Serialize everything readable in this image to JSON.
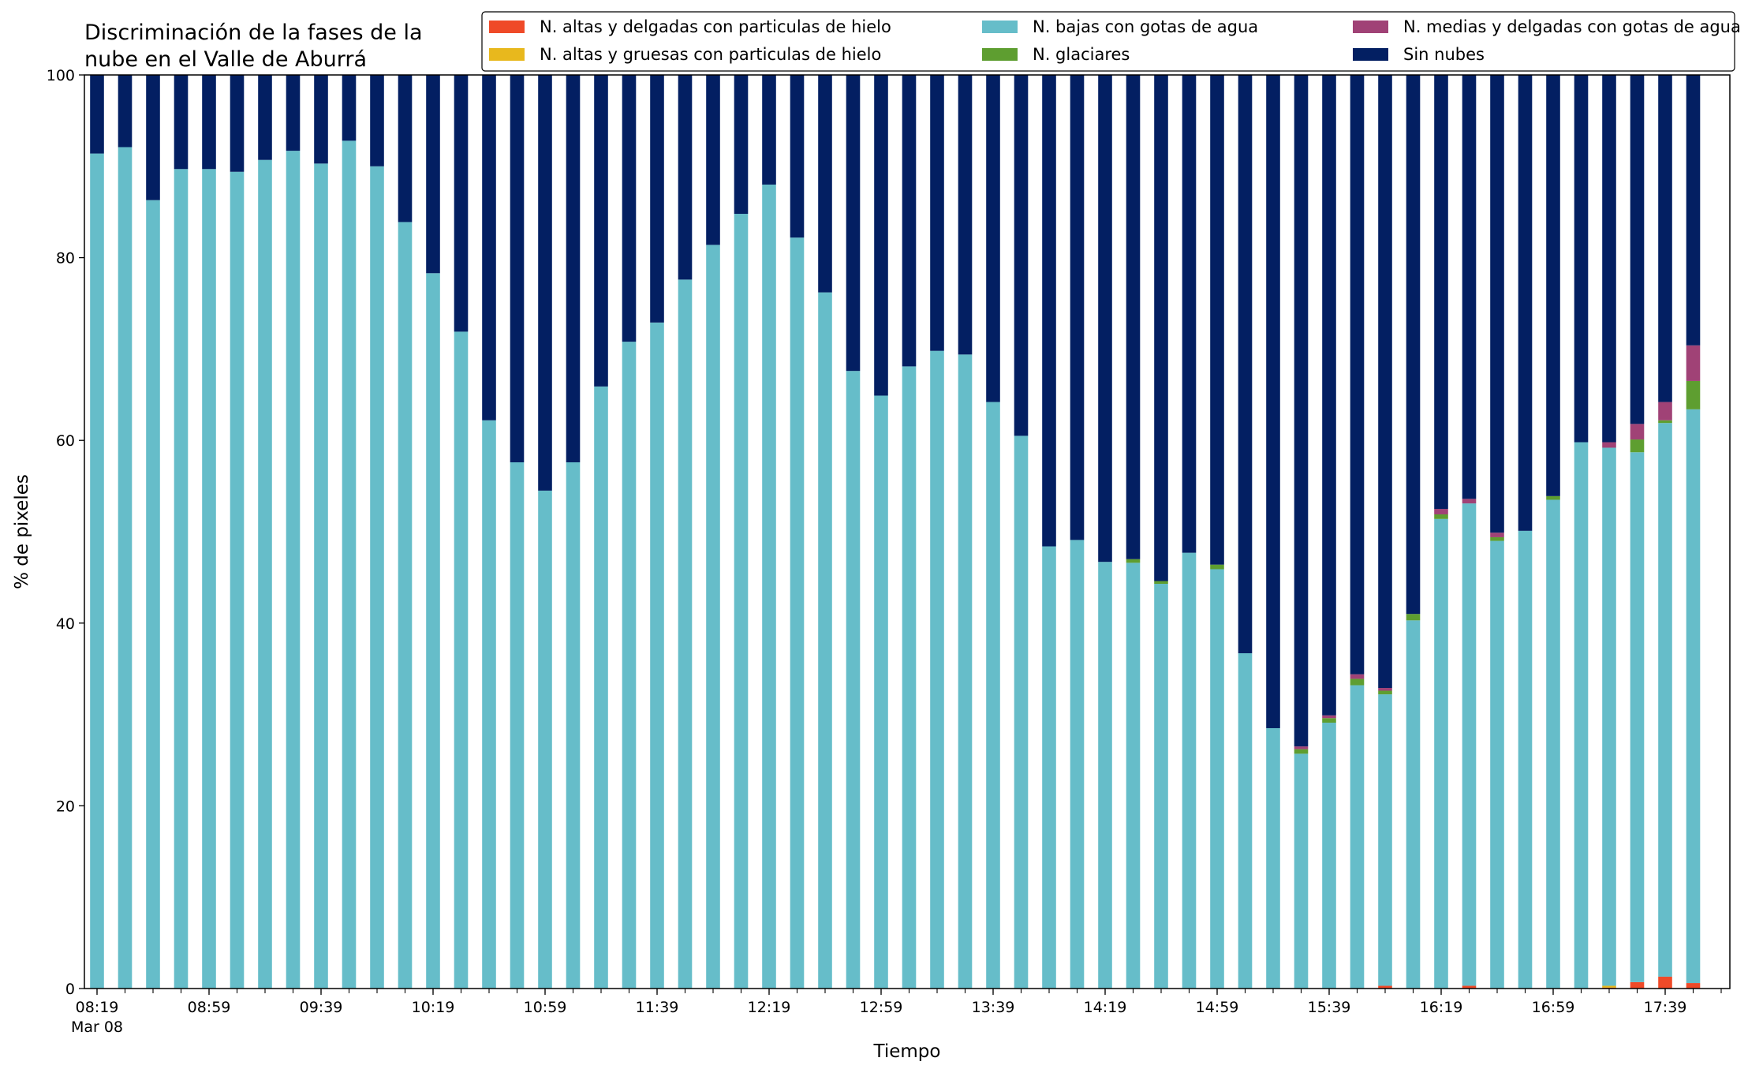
{
  "chart_data": {
    "type": "bar",
    "stacked": true,
    "title": "Discriminación de la fases de la\nnube en el Valle de Aburrá",
    "xlabel": "Tiempo",
    "ylabel": "% de pixeles",
    "ylim": [
      0,
      100
    ],
    "yticks": [
      0,
      20,
      40,
      60,
      80,
      100
    ],
    "grid": false,
    "legend_position": "top-right",
    "legend_columns": 3,
    "date_label": "Mar 08",
    "x_tick_labels": [
      "08:19",
      "08:59",
      "09:39",
      "10:19",
      "10:59",
      "11:39",
      "12:19",
      "12:59",
      "13:39",
      "14:19",
      "14:59",
      "15:39",
      "16:19",
      "16:59",
      "17:39"
    ],
    "x_tick_every": 4,
    "categories": [
      "08:19",
      "08:29",
      "08:39",
      "08:49",
      "08:59",
      "09:09",
      "09:19",
      "09:29",
      "09:39",
      "09:49",
      "09:59",
      "10:09",
      "10:19",
      "10:29",
      "10:39",
      "10:49",
      "10:59",
      "11:09",
      "11:19",
      "11:29",
      "11:39",
      "11:49",
      "11:59",
      "12:09",
      "12:19",
      "12:29",
      "12:39",
      "12:49",
      "12:59",
      "13:09",
      "13:19",
      "13:29",
      "13:39",
      "13:49",
      "13:59",
      "14:09",
      "14:19",
      "14:29",
      "14:39",
      "14:49",
      "14:59",
      "15:09",
      "15:19",
      "15:29",
      "15:39",
      "15:49",
      "15:59",
      "16:09",
      "16:19",
      "16:29",
      "16:39",
      "16:49",
      "16:59",
      "17:09",
      "17:19",
      "17:29",
      "17:39",
      "17:49"
    ],
    "series": [
      {
        "name": "N. altas y delgadas con particulas de hielo",
        "color": "#ef4a28",
        "values": [
          0,
          0,
          0,
          0,
          0,
          0,
          0,
          0,
          0,
          0,
          0,
          0,
          0,
          0,
          0,
          0,
          0,
          0,
          0,
          0,
          0,
          0,
          0,
          0,
          0,
          0,
          0,
          0,
          0,
          0,
          0,
          0,
          0,
          0,
          0,
          0,
          0,
          0,
          0,
          0,
          0,
          0,
          0,
          0,
          0,
          0,
          0.3,
          0,
          0,
          0.3,
          0,
          0,
          0,
          0,
          0.1,
          0.7,
          1.3,
          0.6
        ]
      },
      {
        "name": "N. altas y gruesas con particulas de hielo",
        "color": "#e8b81d",
        "values": [
          0,
          0,
          0,
          0,
          0,
          0,
          0,
          0,
          0,
          0,
          0,
          0,
          0,
          0,
          0,
          0,
          0,
          0,
          0,
          0,
          0,
          0,
          0,
          0,
          0,
          0,
          0,
          0,
          0,
          0,
          0,
          0,
          0,
          0,
          0,
          0,
          0,
          0,
          0,
          0,
          0,
          0,
          0,
          0,
          0,
          0,
          0,
          0,
          0,
          0,
          0,
          0,
          0,
          0,
          0.2,
          0,
          0,
          0
        ]
      },
      {
        "name": "N. bajas con gotas de agua",
        "color": "#66bdc9",
        "values": [
          91.4,
          92.1,
          86.3,
          89.7,
          89.7,
          89.4,
          90.7,
          91.7,
          90.3,
          92.8,
          90.0,
          83.9,
          78.3,
          71.9,
          62.2,
          57.6,
          54.5,
          57.6,
          65.9,
          70.8,
          72.9,
          77.6,
          81.4,
          84.8,
          88.0,
          82.2,
          76.2,
          67.6,
          64.9,
          68.1,
          69.8,
          69.4,
          64.2,
          60.5,
          48.4,
          49.1,
          46.7,
          46.6,
          44.3,
          47.7,
          45.9,
          36.7,
          28.5,
          25.7,
          29.1,
          33.2,
          31.9,
          40.3,
          51.4,
          52.8,
          49.0,
          50.1,
          53.5,
          59.8,
          58.9,
          58.0,
          60.6,
          62.8
        ]
      },
      {
        "name": "N. glaciares",
        "color": "#5e9e30",
        "values": [
          0,
          0,
          0,
          0,
          0,
          0,
          0,
          0,
          0,
          0,
          0,
          0,
          0,
          0,
          0,
          0,
          0,
          0,
          0,
          0,
          0,
          0,
          0,
          0,
          0,
          0,
          0,
          0,
          0,
          0,
          0,
          0,
          0,
          0,
          0,
          0,
          0,
          0.4,
          0.3,
          0,
          0.5,
          0,
          0,
          0.5,
          0.5,
          0.7,
          0.4,
          0.7,
          0.5,
          0,
          0.4,
          0,
          0.4,
          0,
          0,
          1.4,
          0.3,
          3.1
        ]
      },
      {
        "name": "N. medias y delgadas con gotas de agua",
        "color": "#a04276",
        "values": [
          0,
          0,
          0,
          0,
          0,
          0,
          0,
          0,
          0,
          0,
          0,
          0,
          0,
          0,
          0,
          0,
          0,
          0,
          0,
          0,
          0,
          0,
          0,
          0,
          0,
          0,
          0,
          0,
          0,
          0,
          0,
          0,
          0,
          0,
          0,
          0,
          0,
          0,
          0,
          0,
          0,
          0,
          0,
          0.3,
          0.3,
          0.5,
          0.3,
          0,
          0.6,
          0.5,
          0.5,
          0,
          0,
          0,
          0.6,
          1.7,
          2.0,
          3.9
        ]
      },
      {
        "name": "Sin nubes",
        "color": "#031f62",
        "values": [
          8.6,
          7.9,
          13.7,
          10.3,
          10.3,
          10.6,
          9.3,
          8.3,
          9.7,
          7.2,
          10.0,
          16.1,
          21.7,
          28.1,
          37.8,
          42.4,
          45.5,
          42.4,
          34.1,
          29.2,
          27.1,
          22.4,
          18.6,
          15.2,
          12.0,
          17.8,
          23.8,
          32.4,
          35.1,
          31.9,
          30.2,
          30.6,
          35.8,
          39.5,
          51.6,
          50.9,
          53.3,
          53.0,
          55.4,
          52.3,
          53.6,
          63.3,
          71.5,
          73.5,
          70.1,
          65.6,
          67.1,
          59.0,
          47.5,
          46.4,
          50.1,
          49.9,
          46.1,
          40.2,
          40.2,
          38.2,
          35.8,
          29.6
        ]
      }
    ]
  }
}
